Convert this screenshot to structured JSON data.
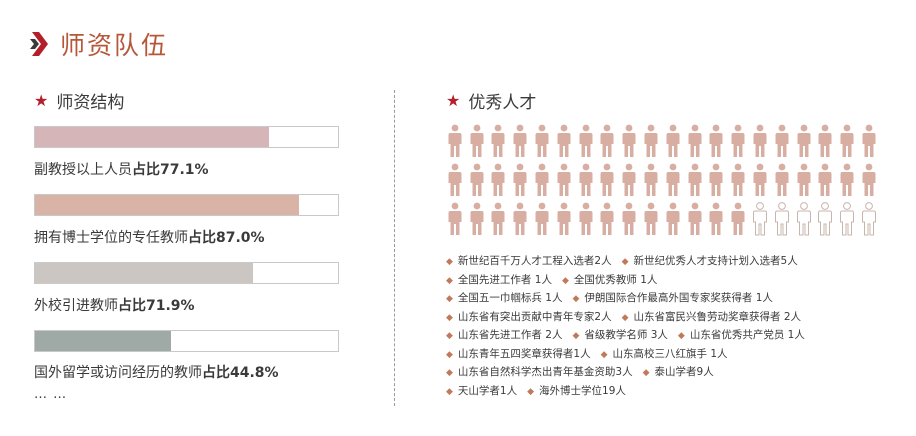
{
  "page": {
    "title": "师资队伍"
  },
  "structure": {
    "title": "师资结构",
    "items": [
      {
        "label": "副教授以上人员",
        "ratio_label": "占比77.1%",
        "percent": 77.1,
        "color": "#d6b5b9"
      },
      {
        "label": "拥有博士学位的专任教师",
        "ratio_label": "占比87.0%",
        "percent": 87.0,
        "color": "#d9b4a6"
      },
      {
        "label": "外校引进教师",
        "ratio_label": "占比71.9%",
        "percent": 71.9,
        "color": "#cbc6c2"
      },
      {
        "label": "国外留学或访问经历的教师",
        "ratio_label": "占比44.8%",
        "percent": 44.8,
        "color": "#9fa9a5"
      }
    ],
    "more": "… …"
  },
  "talent": {
    "title": "优秀人才",
    "icon_filled_color": "#d8ada2",
    "icon_outline_color": "#c9b4ae",
    "rows": [
      {
        "filled": 20,
        "outline": 0
      },
      {
        "filled": 20,
        "outline": 0
      },
      {
        "filled": 14,
        "outline": 6
      }
    ],
    "award_lines": [
      [
        "新世纪百千万人才工程入选者2人",
        "新世纪优秀人才支持计划入选者5人"
      ],
      [
        "全国先进工作者 1人",
        "全国优秀教师 1人"
      ],
      [
        "全国五一巾帼标兵 1人",
        "伊朗国际合作最高外国专家奖获得者 1人"
      ],
      [
        "山东省有突出贡献中青年专家2人",
        "山东省富民兴鲁劳动奖章获得者 2人"
      ],
      [
        "山东省先进工作者 2人",
        "省级教学名师 3人",
        "山东省优秀共产党员 1人"
      ],
      [
        "山东青年五四奖章获得者1人",
        "山东高校三八红旗手 1人"
      ],
      [
        "山东省自然科学杰出青年基金资助3人",
        "泰山学者9人"
      ],
      [
        "天山学者1人",
        "海外博士学位19人"
      ]
    ]
  }
}
